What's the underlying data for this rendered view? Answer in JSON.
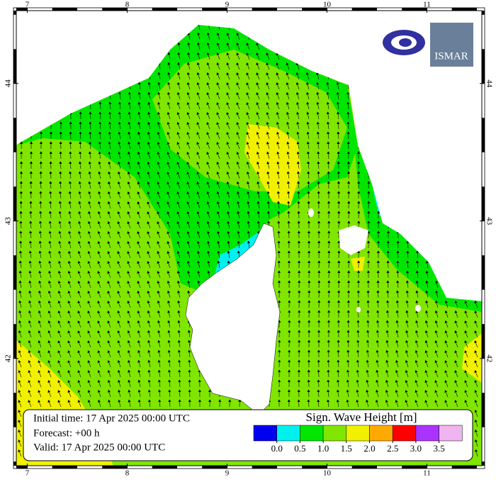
{
  "map": {
    "lon_range": [
      6.89,
      11.55
    ],
    "lat_range": [
      41.22,
      44.53
    ],
    "lon_ticks": [
      7,
      8,
      9,
      10,
      11
    ],
    "lat_ticks": [
      42,
      43,
      44
    ]
  },
  "info": {
    "initial": "Initial time: 17 Apr 2025 00:00 UTC",
    "forecast": "Forecast: +00 h",
    "valid": "Valid: 17 Apr 2025 00:00 UTC"
  },
  "legend": {
    "title": "Sign. Wave Height [m]",
    "colors": [
      "#0000f0",
      "#00f0f0",
      "#00e600",
      "#80e600",
      "#f0f000",
      "#ffaa00",
      "#ff0000",
      "#aa33ff",
      "#f0b4f0"
    ],
    "ticks": [
      {
        "value": 0,
        "label": "0.0"
      },
      0.5,
      {
        "value": 1,
        "label": "1.0"
      },
      1.5,
      {
        "value": 2,
        "label": "2.0"
      },
      2.5,
      {
        "value": 3,
        "label": "3.0"
      },
      3.5
    ]
  },
  "logo": {
    "text": "ISMAR"
  }
}
